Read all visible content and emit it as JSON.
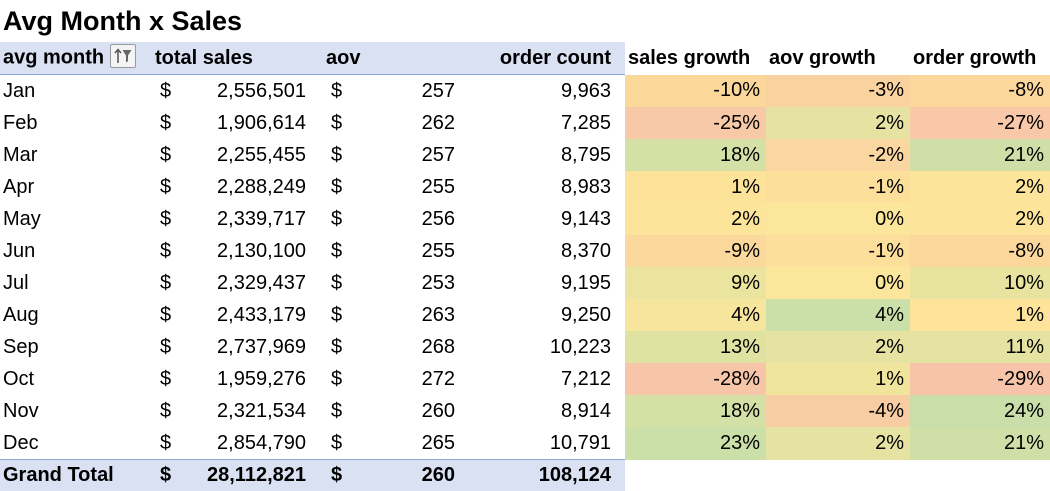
{
  "title": "Avg Month x Sales",
  "headers": {
    "month": "avg month",
    "total_sales": "total sales",
    "aov": "aov",
    "order_count": "order count",
    "sales_growth": "sales growth",
    "aov_growth": "aov growth",
    "order_growth": "order growth"
  },
  "currency_symbol": "$",
  "rows": [
    {
      "month": "Jan",
      "total_sales": "2,556,501",
      "aov": "257",
      "order_count": "9,963",
      "sales_growth": "-10%",
      "aov_growth": "-3%",
      "order_growth": "-8%",
      "c1": "#fbd89a",
      "c2": "#f9d2a0",
      "c3": "#fbd79c"
    },
    {
      "month": "Feb",
      "total_sales": "1,906,614",
      "aov": "262",
      "order_count": "7,285",
      "sales_growth": "-25%",
      "aov_growth": "2%",
      "order_growth": "-27%",
      "c1": "#f8c9a7",
      "c2": "#e6e3a2",
      "c3": "#f8c8a9"
    },
    {
      "month": "Mar",
      "total_sales": "2,255,455",
      "aov": "257",
      "order_count": "8,795",
      "sales_growth": "18%",
      "aov_growth": "-2%",
      "order_growth": "21%",
      "c1": "#d4e0a6",
      "c2": "#fad6a1",
      "c3": "#d0dfa7"
    },
    {
      "month": "Apr",
      "total_sales": "2,288,249",
      "aov": "255",
      "order_count": "8,983",
      "sales_growth": "1%",
      "aov_growth": "-1%",
      "order_growth": "2%",
      "c1": "#fde39a",
      "c2": "#fcdf9a",
      "c3": "#fce59b"
    },
    {
      "month": "May",
      "total_sales": "2,339,717",
      "aov": "256",
      "order_count": "9,143",
      "sales_growth": "2%",
      "aov_growth": "0%",
      "order_growth": "2%",
      "c1": "#fce59b",
      "c2": "#fbe69c",
      "c3": "#fce59b"
    },
    {
      "month": "Jun",
      "total_sales": "2,130,100",
      "aov": "255",
      "order_count": "8,370",
      "sales_growth": "-9%",
      "aov_growth": "-1%",
      "order_growth": "-8%",
      "c1": "#fbd89b",
      "c2": "#fcdf9a",
      "c3": "#fbd79c"
    },
    {
      "month": "Jul",
      "total_sales": "2,329,437",
      "aov": "253",
      "order_count": "9,195",
      "sales_growth": "9%",
      "aov_growth": "0%",
      "order_growth": "10%",
      "c1": "#ebe49f",
      "c2": "#fbe69c",
      "c3": "#e8e4a0"
    },
    {
      "month": "Aug",
      "total_sales": "2,433,179",
      "aov": "263",
      "order_count": "9,250",
      "sales_growth": "4%",
      "aov_growth": "4%",
      "order_growth": "1%",
      "c1": "#f6e59d",
      "c2": "#cbdfa8",
      "c3": "#fde49a"
    },
    {
      "month": "Sep",
      "total_sales": "2,737,969",
      "aov": "268",
      "order_count": "10,223",
      "sales_growth": "13%",
      "aov_growth": "2%",
      "order_growth": "11%",
      "c1": "#e0e2a2",
      "c2": "#e6e3a2",
      "c3": "#e5e3a1"
    },
    {
      "month": "Oct",
      "total_sales": "1,959,276",
      "aov": "272",
      "order_count": "7,212",
      "sales_growth": "-28%",
      "aov_growth": "1%",
      "order_growth": "-29%",
      "c1": "#f7c5a8",
      "c2": "#f1e59e",
      "c3": "#f7c4a9"
    },
    {
      "month": "Nov",
      "total_sales": "2,321,534",
      "aov": "260",
      "order_count": "8,914",
      "sales_growth": "18%",
      "aov_growth": "-4%",
      "order_growth": "24%",
      "c1": "#d4e0a6",
      "c2": "#f8cda4",
      "c3": "#cadea9"
    },
    {
      "month": "Dec",
      "total_sales": "2,854,790",
      "aov": "265",
      "order_count": "10,791",
      "sales_growth": "23%",
      "aov_growth": "2%",
      "order_growth": "21%",
      "c1": "#cbdfa8",
      "c2": "#e6e3a2",
      "c3": "#d0dfa7"
    }
  ],
  "total": {
    "label": "Grand Total",
    "total_sales": "28,112,821",
    "aov": "260",
    "order_count": "108,124"
  },
  "colors": {
    "pivot_header_bg": "#d9e1f2",
    "pivot_border": "#8ea9db"
  },
  "icons": {
    "filter": "sort-filter-icon"
  }
}
